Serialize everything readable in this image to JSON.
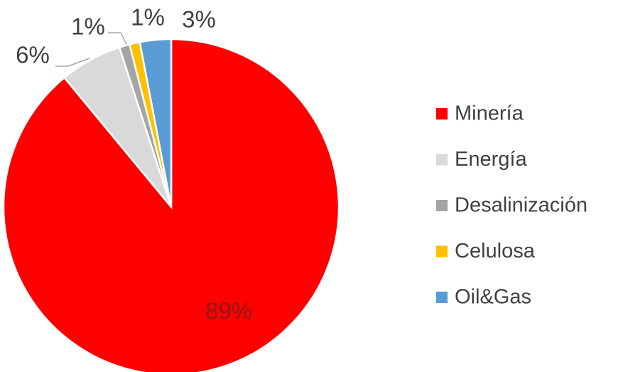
{
  "chart_data": {
    "type": "pie",
    "categories": [
      "Minería",
      "Energía",
      "Desalinización",
      "Celulosa",
      "Oil&Gas"
    ],
    "values": [
      89,
      6,
      1,
      1,
      3
    ],
    "value_labels": [
      "89%",
      "6%",
      "1%",
      "1%",
      "3%"
    ],
    "colors": [
      "#ff0000",
      "#d9d9d9",
      "#a5a5a5",
      "#ffc000",
      "#5b9bd5"
    ],
    "legend": "right"
  }
}
